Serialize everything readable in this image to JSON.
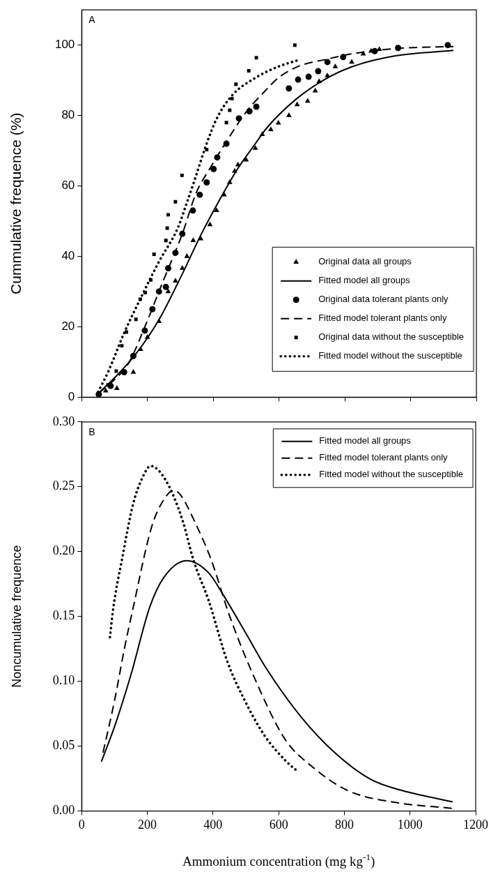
{
  "chart_data": [
    {
      "type": "line",
      "ylabel": "Cummulative frequence (%)",
      "annotations": [
        "A"
      ],
      "xlim": [
        0,
        1200
      ],
      "xticks": [
        0,
        200,
        400,
        600,
        800,
        1000,
        1200
      ],
      "ylim": [
        0,
        110
      ],
      "yticks": [
        0,
        20,
        40,
        60,
        80,
        100
      ],
      "tick_labels": "y",
      "grid": false,
      "legend": "bottom right",
      "series": [
        {
          "name": "Original data all groups",
          "type": "scatter",
          "marker": "triangle",
          "color": "#000000",
          "x": [
            73,
            107,
            157,
            179,
            200,
            235,
            263,
            285,
            306,
            320,
            339,
            362,
            390,
            410,
            433,
            450,
            465,
            475,
            500,
            528,
            549,
            575,
            598,
            630,
            655,
            687,
            710,
            722,
            747,
            771,
            821,
            856,
            880,
            905
          ],
          "values": [
            1.8,
            2.5,
            7.1,
            13.6,
            17,
            21.5,
            30,
            33,
            36.6,
            40,
            44.5,
            45,
            49,
            53,
            57.5,
            61,
            64.2,
            66,
            67.4,
            70.7,
            74.6,
            76,
            77.9,
            80,
            83.1,
            84.1,
            87,
            89.7,
            91.3,
            93.9,
            95.2,
            97.5,
            98.3,
            98.8
          ]
        },
        {
          "name": "Fitted model all groups",
          "type": "line",
          "line_style": "solid",
          "color": "#000000",
          "x": [
            50,
            100,
            165,
            235,
            306,
            362,
            419,
            475,
            528,
            563,
            650,
            740,
            820,
            951,
            1130
          ],
          "values": [
            1,
            5.5,
            12.3,
            22,
            35,
            46,
            56,
            65,
            72,
            76.5,
            84.5,
            90.3,
            93.8,
            96.9,
            98.5
          ]
        },
        {
          "name": "Original data tolerant plants only",
          "type": "scatter",
          "marker": "circle",
          "color": "#000000",
          "x": [
            52,
            88,
            129,
            157,
            192,
            215,
            235,
            256,
            263,
            285,
            306,
            338,
            359,
            380,
            401,
            412,
            440,
            478,
            510,
            531,
            630,
            658,
            690,
            719,
            747,
            795,
            891,
            962,
            1113
          ],
          "values": [
            0.8,
            3.2,
            7.1,
            11.7,
            18.9,
            25,
            30,
            31.3,
            36.6,
            41,
            46.4,
            53,
            57.5,
            61,
            64.8,
            68.1,
            72,
            79.2,
            81.2,
            82.5,
            87.7,
            90.2,
            91,
            92.6,
            95.2,
            96.6,
            98.3,
            99.2,
            100
          ]
        },
        {
          "name": "Fitted model tolerant plants only",
          "type": "line",
          "line_style": "dashed",
          "color": "#000000",
          "x": [
            52,
            100,
            143,
            193,
            249,
            306,
            348,
            390,
            440,
            500,
            556,
            598,
            660,
            740,
            820,
            951,
            1130
          ],
          "values": [
            1.2,
            5,
            9.7,
            20.2,
            33.3,
            46.4,
            58,
            65,
            72.6,
            81,
            86.8,
            90.7,
            94,
            95.9,
            97.5,
            99,
            99.6
          ]
        },
        {
          "name": "Original data without the susceptible",
          "type": "scatter",
          "marker": "square",
          "color": "#000000",
          "x": [
            80,
            105,
            122,
            136,
            165,
            178,
            193,
            210,
            220,
            256,
            260,
            263,
            285,
            305,
            380,
            440,
            450,
            457,
            469,
            508,
            531,
            648
          ],
          "values": [
            3.5,
            7.4,
            14.6,
            18.5,
            22.1,
            27.8,
            29.7,
            33.3,
            40.6,
            44.5,
            48,
            51.8,
            55.5,
            63,
            70.3,
            78,
            81.5,
            84.8,
            88.9,
            92.7,
            96.4,
            100
          ]
        },
        {
          "name": "Fitted model without the susceptible",
          "type": "line",
          "line_style": "dotted",
          "color": "#000000",
          "x": [
            50,
            80,
            129,
            186,
            235,
            292,
            319,
            348,
            376,
            410,
            458,
            528,
            598,
            660
          ],
          "values": [
            1.5,
            7.1,
            18.2,
            29.4,
            38.5,
            48,
            55,
            63,
            71,
            79,
            85.8,
            90.7,
            93.9,
            95.8
          ]
        }
      ]
    },
    {
      "type": "line",
      "xlabel": "Ammonium concentration (mg kg$^{-1}$)",
      "ylabel": "Noncumulative frequence",
      "annotations": [
        "B"
      ],
      "xlim": [
        0,
        1200
      ],
      "xticks": [
        0,
        200,
        400,
        600,
        800,
        1000,
        1200
      ],
      "ylim": [
        0,
        0.3
      ],
      "yticks": [
        {
          "value": 0,
          "label": "0.00"
        },
        {
          "value": 0.05,
          "label": "0.05"
        },
        {
          "value": 0.1,
          "label": "0.10"
        },
        {
          "value": 0.15,
          "label": "0.15"
        },
        {
          "value": 0.2,
          "label": "0.20"
        },
        {
          "value": 0.25,
          "label": "0.25"
        },
        {
          "value": 0.3,
          "label": "0.30"
        }
      ],
      "grid": false,
      "legend": "top right",
      "series": [
        {
          "name": "Fitted model all groups",
          "type": "line",
          "line_style": "solid",
          "color": "#000000",
          "x": [
            60,
            100,
            150,
            207,
            250,
            320,
            387,
            429,
            500,
            562,
            668,
            774,
            880,
            965,
            1130
          ],
          "values": [
            0.038,
            0.065,
            0.105,
            0.157,
            0.18,
            0.193,
            0.1835,
            0.1675,
            0.137,
            0.11,
            0.0726,
            0.0442,
            0.0244,
            0.0165,
            0.007
          ]
        },
        {
          "name": "Fitted model tolerant plants only",
          "type": "line",
          "line_style": "dashed",
          "color": "#000000",
          "x": [
            65,
            100,
            130,
            157,
            213,
            250,
            280,
            300,
            348,
            394,
            451,
            528,
            620,
            698,
            810,
            952,
            1130
          ],
          "values": [
            0.045,
            0.085,
            0.125,
            0.157,
            0.219,
            0.24,
            0.247,
            0.244,
            0.221,
            0.194,
            0.15,
            0.1016,
            0.055,
            0.035,
            0.0158,
            0.0067,
            0.002
          ]
        },
        {
          "name": "Fitted model without the susceptible",
          "type": "line",
          "line_style": "dotted",
          "color": "#000000",
          "x": [
            86,
            97,
            122,
            157,
            185,
            210,
            256,
            306,
            341,
            387,
            443,
            493,
            556,
            620,
            660
          ],
          "values": [
            0.134,
            0.158,
            0.193,
            0.237,
            0.257,
            0.266,
            0.255,
            0.225,
            0.193,
            0.162,
            0.1157,
            0.087,
            0.0585,
            0.039,
            0.03
          ]
        }
      ]
    }
  ]
}
